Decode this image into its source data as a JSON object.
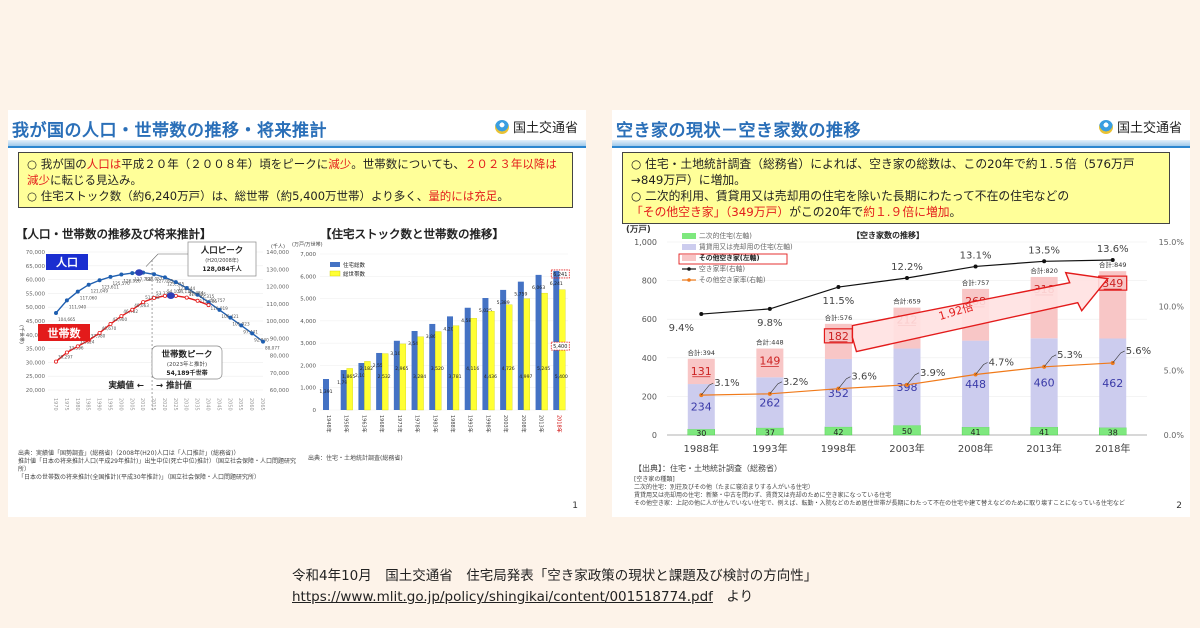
{
  "slide1": {
    "title": "我が国の人口・世帯数の推移・将来推計",
    "ministry": "国土交通省",
    "summary": [
      {
        "parts": [
          {
            "t": "○ 我が国の",
            "red": false
          },
          {
            "t": "人口は",
            "red": true
          },
          {
            "t": "平成２０年（２００８年）頃をピークに",
            "red": false
          },
          {
            "t": "減少",
            "red": true
          },
          {
            "t": "。世帯数についても、",
            "red": false
          },
          {
            "t": "２０２３年以降は減少",
            "red": true
          },
          {
            "t": "に転じる見込み。",
            "red": false
          }
        ]
      },
      {
        "parts": [
          {
            "t": "○ 住宅ストック数（約6,240万戸）は、総世帯（約5,400万世帯）より多く、",
            "red": false
          },
          {
            "t": "量的には充足",
            "red": true
          },
          {
            "t": "。",
            "red": false
          }
        ]
      }
    ],
    "left_subtitle": "【人口・世帯数の推移及び将来推計】",
    "right_subtitle": "【住宅ストック数と世帯数の推移】",
    "left_source": [
      "出典：実績値「国勢調査」(総務省)（2008年(H20)人口は「人口推計」(総務省)）",
      "推計値「日本の将来推計人口(平成29年推計)」出生中位(死亡中位)推計）（国立社会保障・人口問題研究所）",
      "「日本の世帯数の将来推計(全国推計)(平成30年推計)」（国立社会保障・人口問題研究所）"
    ],
    "right_source": "出典：住宅・土地統計調査(総務省)",
    "page": "1"
  },
  "slide2": {
    "title": "空き家の現状－空き家数の推移",
    "ministry": "国土交通省",
    "summary": [
      {
        "parts": [
          {
            "t": "○ 住宅・土地統計調査（総務省）によれば、空き家の総数は、この20年で約１.５倍（576万戸→849万戸）に増加。",
            "red": false
          }
        ]
      },
      {
        "parts": [
          {
            "t": "○ 二次的利用、賃貸用又は売却用の住宅を除いた長期にわたって不在の住宅などの",
            "red": false
          },
          {
            "t": "「その他空き家」",
            "red": true
          },
          {
            "t": "（349万戸）",
            "red": true
          },
          {
            "t": "がこの20年で",
            "red": false
          },
          {
            "t": "約１.９倍に増加",
            "red": true
          },
          {
            "t": "。",
            "red": false
          }
        ]
      }
    ],
    "source_title": "【出典】：住宅・土地統計調査（総務省）",
    "notes": [
      "[空き家の種類]",
      "二次的住宅：別荘及びその他（たまに寝泊まりする人がいる住宅）",
      "賃貸用又は売却用の住宅：新築・中古を問わず、賃貸又は売却のために空き家になっている住宅",
      "その他空き家：上記の他に人が住んでいない住宅で、例えば、転勤・入院などのため居住世帯が長期にわたって不在の住宅や建て替えなどのために取り壊すことになっている住宅など"
    ],
    "page": "2"
  },
  "caption": {
    "line1": "令和4年10月　国土交通省　住宅局発表「空き家政策の現状と課題及び検討の方向性」",
    "link": "https://www.mlit.go.jp/policy/shingikai/content/001518774.pdf",
    "suffix": "　より"
  },
  "chart_data": [
    {
      "type": "line",
      "title": "【人口・世帯数の推移及び将来推計】",
      "x": [
        "1970",
        "1975",
        "1980",
        "1985",
        "1990",
        "1995",
        "2000",
        "2005",
        "2010",
        "2015",
        "2020",
        "2025",
        "2030",
        "2035",
        "2040",
        "2045",
        "2050",
        "2055",
        "2060",
        "2065"
      ],
      "ylabel_left": "(千世帯)",
      "ylabel_right": "(千人)",
      "ylim_left": [
        20000,
        70000
      ],
      "ylim_right": [
        60000,
        140000
      ],
      "yticks_left": [
        "20,000",
        "25,000",
        "30,000",
        "35,000",
        "40,000",
        "45,000",
        "50,000",
        "55,000",
        "60,000",
        "65,000",
        "70,000"
      ],
      "yticks_right": [
        "60,000",
        "70,000",
        "80,000",
        "90,000",
        "100,000",
        "110,000",
        "120,000",
        "130,000",
        "140,000"
      ],
      "series": [
        {
          "name": "人口",
          "axis": "right",
          "color": "#1f5fb0",
          "values": [
            104665,
            111940,
            117060,
            121049,
            123611,
            125570,
            126926,
            127768,
            128057,
            127095,
            125325,
            122544,
            119125,
            115216,
            110919,
            106421,
            101923,
            97441,
            92840,
            88077
          ]
        },
        {
          "name": "世帯数",
          "axis": "left",
          "color": "#e31b1b",
          "values": [
            30297,
            33596,
            35824,
            37980,
            40670,
            43900,
            46782,
            49063,
            51842,
            53332,
            54107,
            54116,
            53484,
            52315,
            50757,
            null,
            null,
            null,
            null,
            null
          ]
        }
      ],
      "annotations": [
        {
          "label": "人口ピーク",
          "sub": "(H20/2008年)",
          "value": "128,084千人"
        },
        {
          "label": "世帯数ピーク",
          "sub": "(2023年と推計)",
          "value": "54,189千世帯"
        },
        {
          "label": "実績値",
          "arrow": "left"
        },
        {
          "label": "推計値",
          "arrow": "right"
        }
      ],
      "legend": [
        "人口",
        "世帯数"
      ]
    },
    {
      "type": "bar",
      "title": "【住宅ストック数と世帯数の推移】",
      "ylabel": "(万戸/万世帯)",
      "ylim": [
        0,
        7000
      ],
      "yticks": [
        "0",
        "1,000",
        "2,000",
        "3,000",
        "4,000",
        "5,000",
        "6,000",
        "7,000"
      ],
      "categories": [
        "1958年",
        "1963年",
        "1968年",
        "1973年",
        "1978年",
        "1983年",
        "1988年",
        "1993年",
        "1998年",
        "2003年",
        "2008年",
        "2013年",
        "2018年"
      ],
      "series": [
        {
          "name": "住宅総数",
          "color": "#4472c4",
          "values": [
            1793,
            2109,
            2559,
            3106,
            3545,
            3861,
            4201,
            4588,
            5025,
            5389,
            5759,
            6063,
            6241
          ]
        },
        {
          "name": "総世帯数",
          "color": "#ffff33",
          "values": [
            1865,
            2182,
            2532,
            2965,
            3284,
            3520,
            3781,
            4116,
            4436,
            4726,
            4997,
            5245,
            5400
          ]
        }
      ],
      "extra_bar": {
        "category": "1948年",
        "series": "住宅総数",
        "value": 1391
      },
      "highlight": {
        "category": "2018年",
        "values": [
          6241,
          5400
        ]
      },
      "legend": [
        "住宅総数",
        "総世帯数"
      ]
    },
    {
      "type": "bar",
      "title": "【空き家数の推移】",
      "ylabel": "(万戸)",
      "ylim": [
        0,
        1000
      ],
      "ylim_right": [
        0,
        15
      ],
      "yticks": [
        "0",
        "200",
        "400",
        "600",
        "800",
        "1,000"
      ],
      "yticks_right": [
        "0.0%",
        "5.0%",
        "10.0%",
        "15.0%"
      ],
      "categories": [
        "1988年",
        "1993年",
        "1998年",
        "2003年",
        "2008年",
        "2013年",
        "2018年"
      ],
      "series": [
        {
          "name": "二次的住宅(左軸)",
          "color": "#7ee87e",
          "values": [
            30,
            37,
            42,
            50,
            41,
            41,
            38
          ]
        },
        {
          "name": "賃貸用又は売却用の住宅(左軸)",
          "color": "#ccccee",
          "values": [
            234,
            262,
            352,
            398,
            448,
            460,
            462
          ]
        },
        {
          "name": "その他空き家(左軸)",
          "color": "#f8c6c6",
          "values": [
            131,
            149,
            182,
            212,
            268,
            318,
            349
          ]
        },
        {
          "name": "空き家率(右軸)",
          "type": "line",
          "color": "#111111",
          "values": [
            9.4,
            9.8,
            11.5,
            12.2,
            13.1,
            13.5,
            13.6
          ]
        },
        {
          "name": "その他空き家率(右軸)",
          "type": "line",
          "color": "#f07a1a",
          "values": [
            3.1,
            3.2,
            3.6,
            3.9,
            4.7,
            5.3,
            5.6
          ]
        }
      ],
      "totals": [
        "合計:394",
        "合計:448",
        "合計:576",
        "合計:659",
        "合計:757",
        "合計:820",
        "合計:849"
      ],
      "annotations": [
        {
          "label": "1.92倍",
          "from": "1998年",
          "to": "2018年"
        }
      ],
      "legend": [
        "二次的住宅(左軸)",
        "賃貸用又は売却用の住宅(左軸)",
        "その他空き家(左軸)",
        "空き家率(右軸)",
        "その他空き家率(右軸)"
      ]
    }
  ]
}
